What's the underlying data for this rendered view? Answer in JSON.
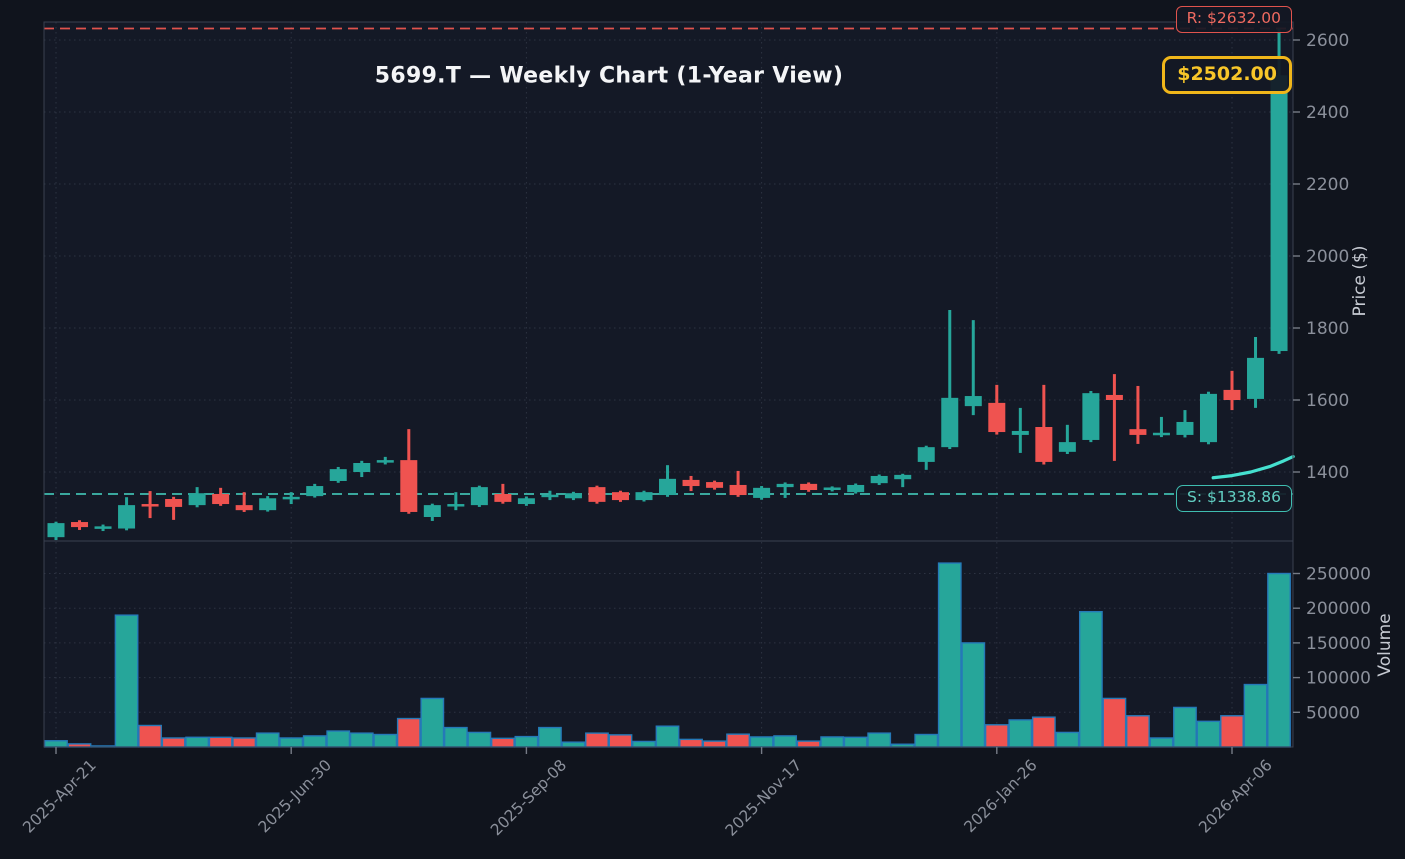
{
  "title": "5699.T — Weekly Chart (1-Year View)",
  "levels": {
    "resistance": {
      "label": "R: $2632.00",
      "value": 2632,
      "color": "#e0534d"
    },
    "support": {
      "label": "S: $1338.86",
      "value": 1338.86,
      "color": "#3fbdb0"
    },
    "last_price": {
      "label": "$2502.00",
      "value": 2502,
      "color": "#f5b91e"
    }
  },
  "price_axis": {
    "label": "Price ($)",
    "tick_labels": [
      "1400",
      "1600",
      "1800",
      "2000",
      "2200",
      "2400",
      "2600"
    ]
  },
  "volume_axis": {
    "label": "Volume",
    "tick_labels": [
      "50000",
      "100000",
      "150000",
      "200000",
      "250000"
    ]
  },
  "x_axis": {
    "tick_labels": [
      "2025-Apr-21",
      "2025-Jun-30",
      "2025-Sep-08",
      "2025-Nov-17",
      "2026-Jan-26",
      "2026-Apr-06"
    ],
    "tick_week_indices": [
      0,
      10,
      20,
      30,
      40,
      50
    ]
  },
  "chart_data": {
    "type": "candlestick+volume",
    "title": "5699.T — Weekly Chart (1-Year View)",
    "x_label_note": "weekly candles, week index 0 = 2025-Apr-21 tick, one candle per week, 53 candles",
    "price_axis": {
      "ticks": [
        1400,
        1600,
        1800,
        2000,
        2200,
        2400,
        2600
      ],
      "range": [
        1208,
        2650
      ],
      "grid": true
    },
    "volume_axis": {
      "ticks": [
        50000,
        100000,
        150000,
        200000,
        250000
      ],
      "range": [
        0,
        297000
      ],
      "grid": true
    },
    "resistance_level": 2632,
    "support_level": 1338.86,
    "last_close": 2502,
    "legend_position": "none",
    "candles_ohlc": [
      [
        1219,
        1262,
        1211,
        1258
      ],
      [
        1261,
        1266,
        1239,
        1247
      ],
      [
        1244,
        1254,
        1236,
        1249
      ],
      [
        1243,
        1330,
        1238,
        1308
      ],
      [
        1311,
        1347,
        1272,
        1305
      ],
      [
        1325,
        1331,
        1267,
        1303
      ],
      [
        1308,
        1358,
        1302,
        1341
      ],
      [
        1339,
        1356,
        1306,
        1311
      ],
      [
        1308,
        1344,
        1289,
        1294
      ],
      [
        1294,
        1333,
        1290,
        1327
      ],
      [
        1326,
        1344,
        1311,
        1331
      ],
      [
        1333,
        1367,
        1329,
        1361
      ],
      [
        1375,
        1414,
        1370,
        1408
      ],
      [
        1400,
        1431,
        1386,
        1425
      ],
      [
        1426,
        1442,
        1421,
        1433
      ],
      [
        1433,
        1519,
        1284,
        1289
      ],
      [
        1275,
        1312,
        1264,
        1308
      ],
      [
        1306,
        1344,
        1294,
        1311
      ],
      [
        1308,
        1362,
        1303,
        1358
      ],
      [
        1339,
        1367,
        1312,
        1317
      ],
      [
        1311,
        1332,
        1306,
        1327
      ],
      [
        1332,
        1348,
        1322,
        1337
      ],
      [
        1327,
        1345,
        1322,
        1341
      ],
      [
        1358,
        1362,
        1312,
        1317
      ],
      [
        1344,
        1348,
        1317,
        1322
      ],
      [
        1322,
        1348,
        1318,
        1344
      ],
      [
        1336,
        1419,
        1331,
        1381
      ],
      [
        1378,
        1389,
        1347,
        1361
      ],
      [
        1372,
        1376,
        1351,
        1356
      ],
      [
        1364,
        1403,
        1331,
        1336
      ],
      [
        1328,
        1361,
        1323,
        1356
      ],
      [
        1358,
        1371,
        1328,
        1367
      ],
      [
        1367,
        1371,
        1345,
        1350
      ],
      [
        1350,
        1360,
        1346,
        1357
      ],
      [
        1344,
        1368,
        1340,
        1364
      ],
      [
        1369,
        1393,
        1364,
        1389
      ],
      [
        1380,
        1395,
        1358,
        1392
      ],
      [
        1428,
        1473,
        1406,
        1469
      ],
      [
        1469,
        1850,
        1464,
        1606
      ],
      [
        1583,
        1822,
        1558,
        1611
      ],
      [
        1592,
        1642,
        1504,
        1511
      ],
      [
        1503,
        1578,
        1453,
        1514
      ],
      [
        1525,
        1642,
        1421,
        1428
      ],
      [
        1456,
        1531,
        1450,
        1483
      ],
      [
        1489,
        1625,
        1483,
        1619
      ],
      [
        1614,
        1672,
        1431,
        1600
      ],
      [
        1519,
        1639,
        1478,
        1503
      ],
      [
        1503,
        1553,
        1497,
        1509
      ],
      [
        1503,
        1572,
        1496,
        1539
      ],
      [
        1483,
        1623,
        1477,
        1617
      ],
      [
        1628,
        1681,
        1572,
        1600
      ],
      [
        1603,
        1775,
        1578,
        1717
      ],
      [
        1736,
        2632,
        1728,
        2502
      ]
    ],
    "volumes": [
      9000,
      4500,
      1500,
      190000,
      31000,
      13000,
      14000,
      14000,
      13000,
      20000,
      13000,
      16000,
      23000,
      20000,
      18000,
      41000,
      70000,
      28000,
      21000,
      12500,
      15000,
      28000,
      7000,
      20000,
      17500,
      8000,
      30000,
      11000,
      8500,
      18500,
      14500,
      16000,
      8500,
      14500,
      14000,
      20000,
      4000,
      18000,
      265000,
      150000,
      32000,
      39000,
      43000,
      21000,
      195000,
      70000,
      45000,
      13000,
      57000,
      37000,
      45000,
      90000,
      250000
    ],
    "trend_line_points": [
      {
        "week": 49.2,
        "price": 1384
      },
      {
        "week": 50.0,
        "price": 1390
      },
      {
        "week": 50.8,
        "price": 1400
      },
      {
        "week": 51.6,
        "price": 1415
      },
      {
        "week": 52.2,
        "price": 1431
      },
      {
        "week": 52.6,
        "price": 1443
      }
    ],
    "colors": {
      "up": "#26a69a",
      "down": "#ef5350",
      "volume_edge": "#2579b8",
      "resistance": "#e0534d",
      "support": "#3fbdb0",
      "trend": "#45e0cf",
      "background": "#10141d",
      "axes_background": "#141926",
      "grid": "#2d3342",
      "tick_text": "#8b909b"
    }
  }
}
